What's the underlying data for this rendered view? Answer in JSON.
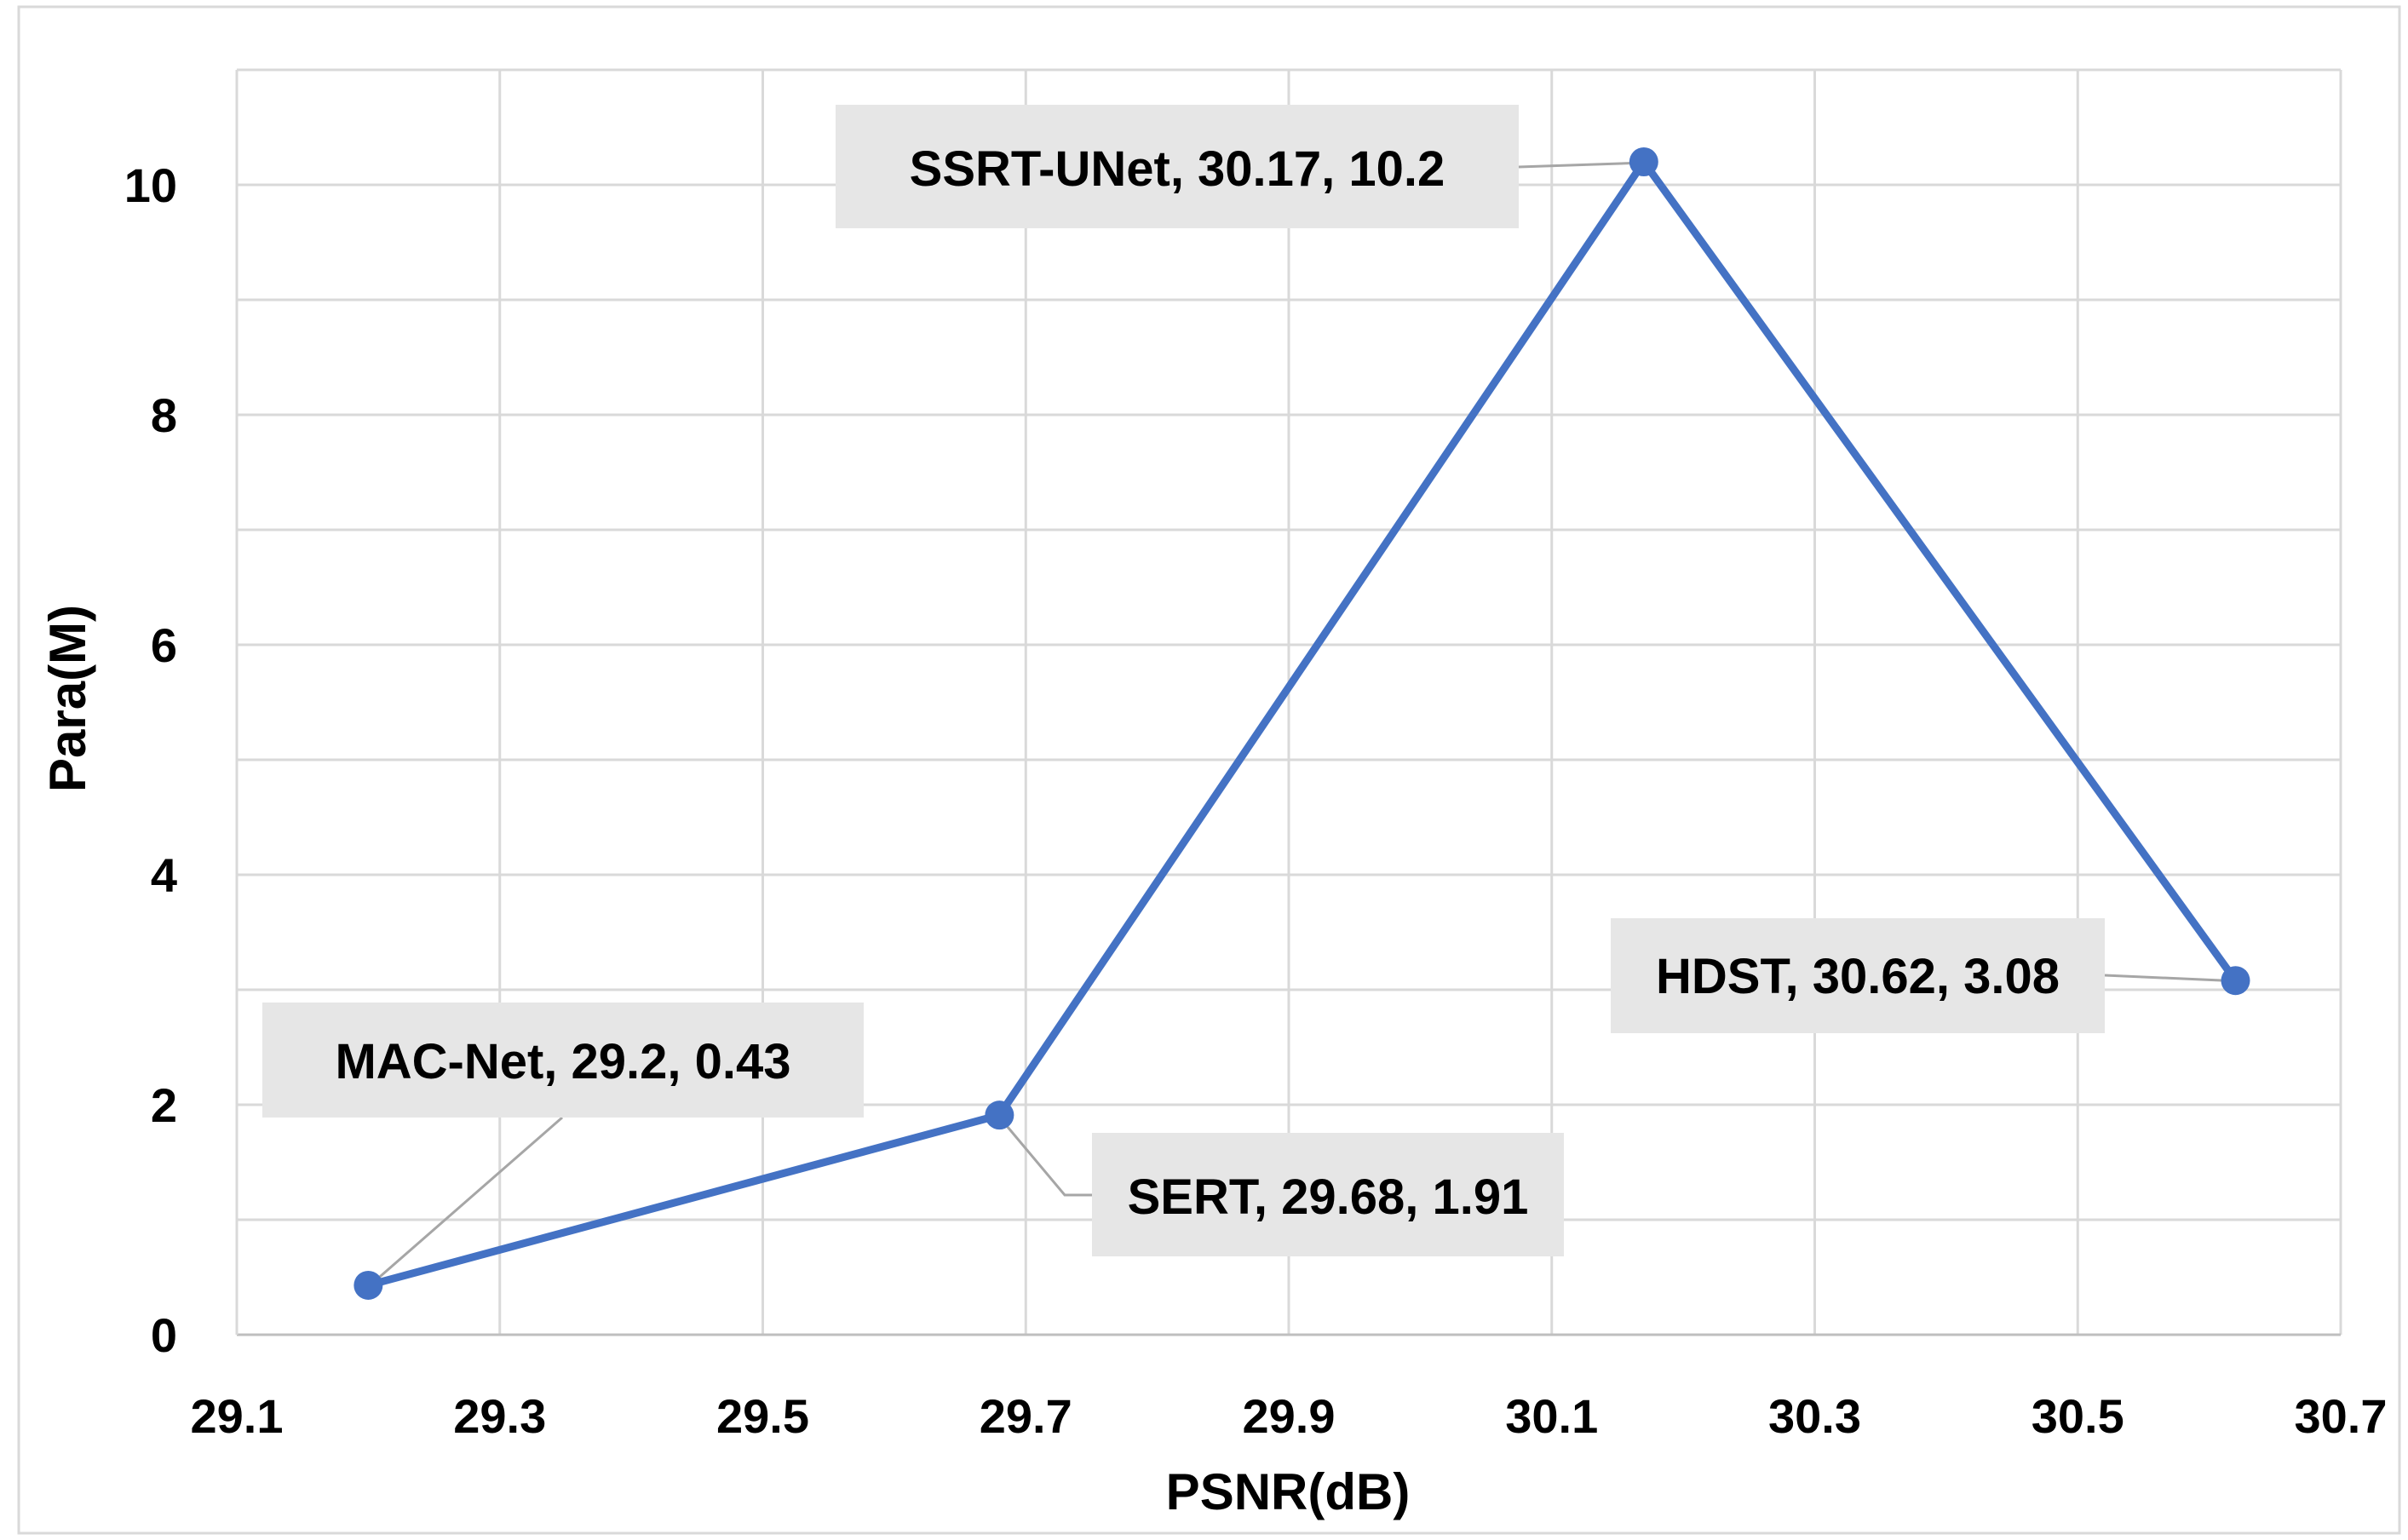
{
  "chart_data": {
    "type": "line",
    "title": "",
    "xlabel": "PSNR(dB)",
    "ylabel": "Para(M)",
    "xlim": [
      29.1,
      30.7
    ],
    "ylim": [
      0,
      11
    ],
    "x_ticks": [
      "29.1",
      "29.3",
      "29.5",
      "29.7",
      "29.9",
      "30.1",
      "30.3",
      "30.5",
      "30.7"
    ],
    "y_ticks": [
      "0",
      "2",
      "4",
      "6",
      "8",
      "10"
    ],
    "grid": true,
    "legend": "none",
    "line_color": "#4472C4",
    "series": [
      {
        "points": [
          {
            "name": "MAC-Net",
            "x": 29.2,
            "y": 0.43,
            "label": "MAC-Net, 29.2, 0.43"
          },
          {
            "name": "SERT",
            "x": 29.68,
            "y": 1.91,
            "label": "SERT, 29.68, 1.91"
          },
          {
            "name": "SSRT-UNet",
            "x": 30.17,
            "y": 10.2,
            "label": "SSRT-UNet, 30.17, 10.2"
          },
          {
            "name": "HDST",
            "x": 30.62,
            "y": 3.08,
            "label": "HDST, 30.62, 3.08"
          }
        ]
      }
    ]
  }
}
